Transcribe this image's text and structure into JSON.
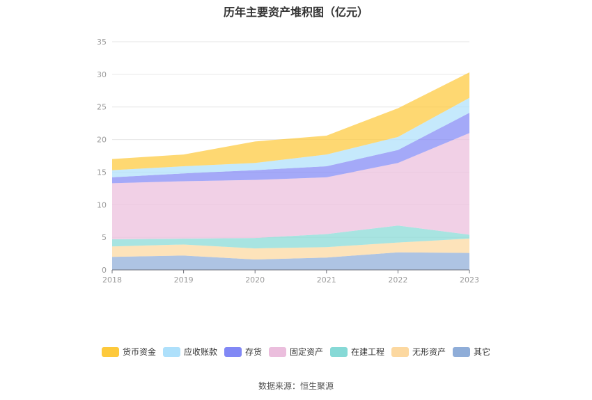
{
  "title": "历年主要资产堆积图（亿元）",
  "source": "数据来源：恒生聚源",
  "chart_data": {
    "type": "area",
    "stacked": true,
    "title": "历年主要资产堆积图（亿元）",
    "x": [
      "2018",
      "2019",
      "2020",
      "2021",
      "2022",
      "2023"
    ],
    "ylim": [
      0,
      35
    ],
    "yticks": [
      0,
      5,
      10,
      15,
      20,
      25,
      30,
      35
    ],
    "grid": true,
    "legend_position": "bottom",
    "series": [
      {
        "name": "其它",
        "color": "#8fadd8",
        "values": [
          2.0,
          2.2,
          1.6,
          1.9,
          2.7,
          2.6
        ]
      },
      {
        "name": "无形资产",
        "color": "#fcd8a0",
        "values": [
          1.6,
          1.7,
          1.7,
          1.6,
          1.5,
          2.2
        ]
      },
      {
        "name": "在建工程",
        "color": "#86d9d6",
        "values": [
          1.1,
          0.9,
          1.6,
          2.0,
          2.6,
          0.6
        ]
      },
      {
        "name": "固定资产",
        "color": "#ebbedd",
        "values": [
          8.6,
          8.8,
          8.9,
          8.7,
          9.6,
          15.6
        ]
      },
      {
        "name": "存货",
        "color": "#8188f5",
        "values": [
          0.9,
          1.2,
          1.5,
          1.7,
          2.0,
          3.1
        ]
      },
      {
        "name": "应收账款",
        "color": "#aee0fb",
        "values": [
          1.1,
          1.1,
          1.1,
          1.8,
          2.0,
          2.3
        ]
      },
      {
        "name": "货币资金",
        "color": "#fdc93c",
        "values": [
          1.7,
          1.8,
          3.3,
          2.9,
          4.4,
          3.9
        ]
      }
    ],
    "legend_order": [
      "货币资金",
      "应收账款",
      "存货",
      "固定资产",
      "在建工程",
      "无形资产",
      "其它"
    ]
  }
}
